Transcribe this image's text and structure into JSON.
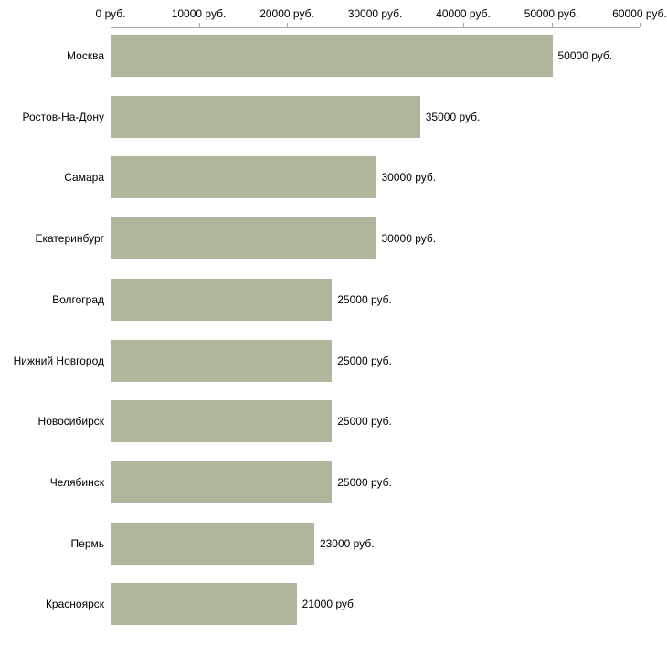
{
  "chart_data": {
    "type": "bar",
    "orientation": "horizontal",
    "title": "",
    "categories": [
      "Москва",
      "Ростов-На-Дону",
      "Самара",
      "Екатеринбург",
      "Волгоград",
      "Нижний Новгород",
      "Новосибирск",
      "Челябинск",
      "Пермь",
      "Красноярск"
    ],
    "values": [
      50000,
      35000,
      30000,
      30000,
      25000,
      25000,
      25000,
      25000,
      23000,
      21000
    ],
    "value_labels": [
      "50000 руб.",
      "35000 руб.",
      "30000 руб.",
      "30000 руб.",
      "25000 руб.",
      "25000 руб.",
      "25000 руб.",
      "25000 руб.",
      "23000 руб.",
      "21000 руб."
    ],
    "xlabel": "",
    "ylabel": "",
    "xlim": [
      0,
      60000
    ],
    "x_ticks": [
      0,
      10000,
      20000,
      30000,
      40000,
      50000,
      60000
    ],
    "x_tick_labels": [
      "0 руб.",
      "10000 руб.",
      "20000 руб.",
      "30000 руб.",
      "40000 руб.",
      "50000 руб.",
      "60000 руб."
    ],
    "grid": false,
    "legend": false,
    "colors": {
      "bar_fill": "#aeb79b",
      "axis_line": "#a8a8a8",
      "text": "#000000",
      "background": "#ffffff"
    }
  }
}
